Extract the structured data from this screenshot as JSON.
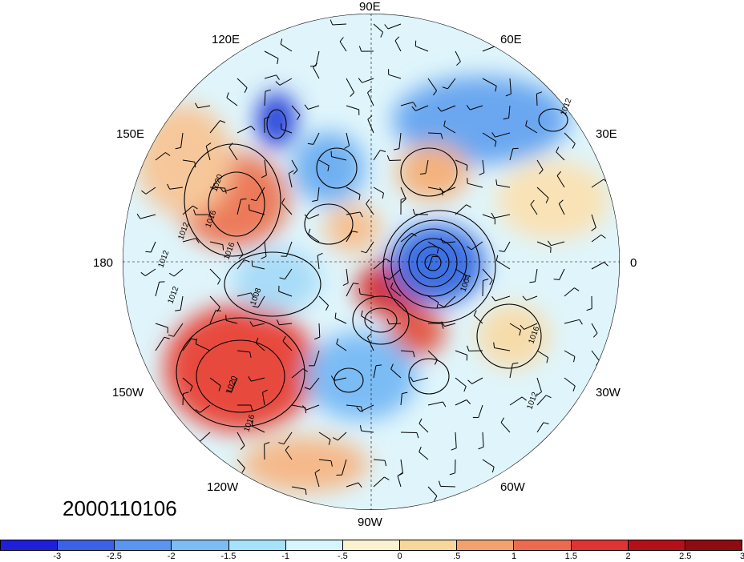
{
  "map": {
    "projection": "north-polar-stereographic",
    "longitude_labels": [
      {
        "name": "lon-90e",
        "text": "90E"
      },
      {
        "name": "lon-60e",
        "text": "60E"
      },
      {
        "name": "lon-30e",
        "text": "30E"
      },
      {
        "name": "lon-0",
        "text": "0"
      },
      {
        "name": "lon-30w",
        "text": "30W"
      },
      {
        "name": "lon-60w",
        "text": "60W"
      },
      {
        "name": "lon-90w",
        "text": "90W"
      },
      {
        "name": "lon-120w",
        "text": "120W"
      },
      {
        "name": "lon-150w",
        "text": "150W"
      },
      {
        "name": "lon-180",
        "text": "180"
      },
      {
        "name": "lon-150e",
        "text": "150E"
      },
      {
        "name": "lon-120e",
        "text": "120E"
      }
    ],
    "contour_labels": [
      "1020",
      "1016",
      "1012",
      "1016",
      "1012",
      "1008",
      "1020",
      "1016",
      "1012",
      "1004",
      "1016",
      "1012",
      "1012"
    ],
    "date": "2000110106"
  },
  "colorbar": {
    "colors": [
      "#1f1fd9",
      "#3a62e6",
      "#5a95ef",
      "#7dbdf6",
      "#a7e2fb",
      "#d6f5fd",
      "#fbf3d0",
      "#f8d79c",
      "#f3a26e",
      "#ec6b4f",
      "#df3434",
      "#b4101a",
      "#8f0b12"
    ],
    "tick_labels": [
      "-3",
      "-2.5",
      "-2",
      "-1.5",
      "-1",
      "-.5",
      "0",
      ".5",
      "1",
      "1.5",
      "2",
      "2.5",
      "3"
    ]
  }
}
